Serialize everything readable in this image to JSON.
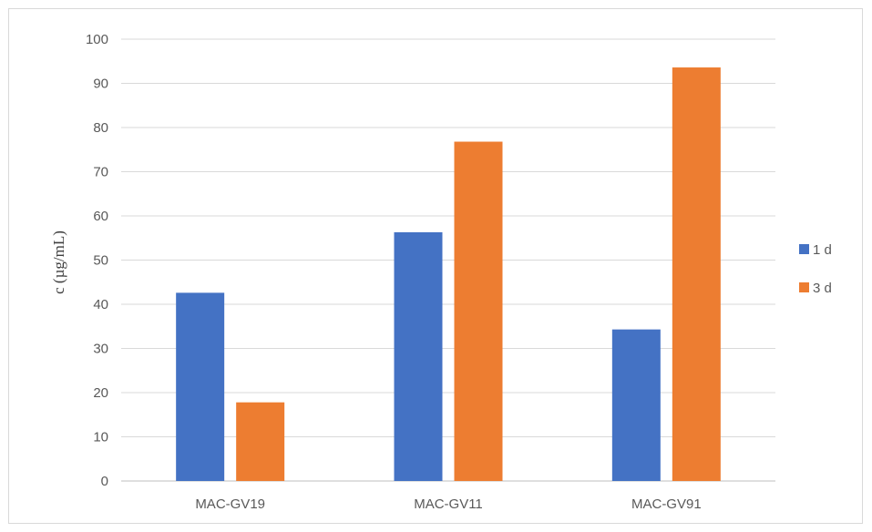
{
  "chart_data": {
    "type": "bar",
    "title": "",
    "xlabel": "",
    "ylabel": "c (µg/mL)",
    "ylim": [
      0,
      100
    ],
    "yticks": [
      0,
      10,
      20,
      30,
      40,
      50,
      60,
      70,
      80,
      90,
      100
    ],
    "grid": true,
    "legend_position": "right",
    "categories": [
      "MAC-GV19",
      "MAC-GV11",
      "MAC-GV91"
    ],
    "series": [
      {
        "name": "1 d",
        "color": "#4472c4",
        "values": [
          42.6,
          56.3,
          34.3
        ]
      },
      {
        "name": "3 d",
        "color": "#ed7d31",
        "values": [
          17.8,
          76.8,
          93.6
        ]
      }
    ]
  }
}
